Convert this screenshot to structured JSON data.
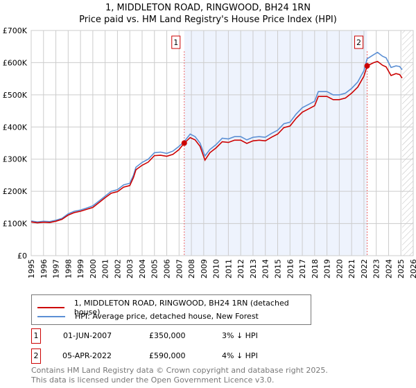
{
  "chart_data": {
    "type": "line",
    "title": "1, MIDDLETON ROAD, RINGWOOD, BH24 1RN",
    "subtitle": "Price paid vs. HM Land Registry's House Price Index (HPI)",
    "xlim": [
      1995,
      2026
    ],
    "ylim": [
      0,
      700000
    ],
    "x_ticks": [
      "1995",
      "1996",
      "1997",
      "1998",
      "1999",
      "2000",
      "2001",
      "2002",
      "2003",
      "2004",
      "2005",
      "2006",
      "2007",
      "2008",
      "2009",
      "2010",
      "2011",
      "2012",
      "2013",
      "2014",
      "2015",
      "2016",
      "2017",
      "2018",
      "2019",
      "2020",
      "2021",
      "2022",
      "2023",
      "2024",
      "2025",
      "2026"
    ],
    "y_ticks": [
      {
        "v": 0,
        "label": "£0"
      },
      {
        "v": 100000,
        "label": "£100K"
      },
      {
        "v": 200000,
        "label": "£200K"
      },
      {
        "v": 300000,
        "label": "£300K"
      },
      {
        "v": 400000,
        "label": "£400K"
      },
      {
        "v": 500000,
        "label": "£500K"
      },
      {
        "v": 600000,
        "label": "£600K"
      },
      {
        "v": 700000,
        "label": "£700K"
      }
    ],
    "grid": true,
    "shaded_range": [
      2007.42,
      2022.26
    ],
    "forecast_hatch_from": 2025.1,
    "series": [
      {
        "name": "1, MIDDLETON ROAD, RINGWOOD, BH24 1RN (detached house)",
        "color": "#cc0000",
        "x": [
          1995,
          1995.5,
          1996,
          1996.5,
          1997,
          1997.5,
          1998,
          1998.5,
          1999,
          1999.5,
          2000,
          2000.5,
          2001,
          2001.5,
          2002,
          2002.5,
          2003,
          2003.3,
          2003.5,
          2004,
          2004.5,
          2005,
          2005.5,
          2006,
          2006.5,
          2007,
          2007.42,
          2007.9,
          2008.3,
          2008.7,
          2009.1,
          2009.5,
          2010,
          2010.5,
          2011,
          2011.5,
          2012,
          2012.5,
          2013,
          2013.5,
          2014,
          2014.5,
          2015,
          2015.5,
          2016,
          2016.5,
          2017,
          2017.5,
          2018,
          2018.3,
          2019,
          2019.5,
          2020,
          2020.5,
          2021,
          2021.5,
          2022,
          2022.26,
          2022.8,
          2023.1,
          2023.5,
          2023.8,
          2024.2,
          2024.6,
          2024.9,
          2025.1
        ],
        "y": [
          105000,
          102000,
          104000,
          103000,
          107000,
          113000,
          126000,
          134000,
          138000,
          144000,
          150000,
          165000,
          180000,
          194000,
          199000,
          213000,
          218000,
          243000,
          267000,
          281000,
          291000,
          311000,
          312000,
          309000,
          315000,
          330000,
          350000,
          367000,
          360000,
          340000,
          297000,
          320000,
          335000,
          354000,
          352000,
          359000,
          359000,
          349000,
          357000,
          359000,
          357000,
          368000,
          378000,
          398000,
          403000,
          427000,
          446000,
          456000,
          466000,
          495000,
          495000,
          485000,
          485000,
          490000,
          505000,
          524000,
          558000,
          590000,
          600000,
          604000,
          592000,
          587000,
          560000,
          566000,
          563000,
          552000
        ]
      },
      {
        "name": "HPI: Average price, detached house, New Forest",
        "color": "#5b8fd4",
        "x": [
          1995,
          1995.5,
          1996,
          1996.5,
          1997,
          1997.5,
          1998,
          1998.5,
          1999,
          1999.5,
          2000,
          2000.5,
          2001,
          2001.5,
          2002,
          2002.5,
          2003,
          2003.3,
          2003.5,
          2004,
          2004.5,
          2005,
          2005.5,
          2006,
          2006.5,
          2007,
          2007.42,
          2007.9,
          2008.3,
          2008.7,
          2009.1,
          2009.5,
          2010,
          2010.5,
          2011,
          2011.5,
          2012,
          2012.5,
          2013,
          2013.5,
          2014,
          2014.5,
          2015,
          2015.5,
          2016,
          2016.5,
          2017,
          2017.5,
          2018,
          2018.3,
          2019,
          2019.5,
          2020,
          2020.5,
          2021,
          2021.5,
          2022,
          2022.26,
          2022.8,
          2023.1,
          2023.5,
          2023.8,
          2024.2,
          2024.6,
          2024.9,
          2025.1
        ],
        "y": [
          108000,
          105000,
          107000,
          106000,
          110000,
          116000,
          130000,
          138000,
          142000,
          148000,
          155000,
          170000,
          185000,
          200000,
          205000,
          220000,
          225000,
          250000,
          275000,
          290000,
          300000,
          320000,
          322000,
          318000,
          325000,
          340000,
          355000,
          378000,
          370000,
          350000,
          310000,
          330000,
          345000,
          365000,
          363000,
          370000,
          370000,
          360000,
          368000,
          370000,
          368000,
          380000,
          390000,
          410000,
          415000,
          440000,
          460000,
          470000,
          480000,
          510000,
          510000,
          500000,
          500000,
          505000,
          520000,
          540000,
          575000,
          612000,
          625000,
          632000,
          620000,
          615000,
          585000,
          590000,
          588000,
          578000
        ]
      }
    ],
    "annotations": [
      {
        "id": "1",
        "x": 2007.42,
        "y": 350000
      },
      {
        "id": "2",
        "x": 2022.26,
        "y": 590000
      }
    ]
  },
  "legend": {
    "series1": "1, MIDDLETON ROAD, RINGWOOD, BH24 1RN (detached house)",
    "series2": "HPI: Average price, detached house, New Forest"
  },
  "transactions": [
    {
      "id": "1",
      "date": "01-JUN-2007",
      "price": "£350,000",
      "hpi": "3% ↓ HPI"
    },
    {
      "id": "2",
      "date": "05-APR-2022",
      "price": "£590,000",
      "hpi": "4% ↓ HPI"
    }
  ],
  "footer": {
    "line1": "Contains HM Land Registry data © Crown copyright and database right 2025.",
    "line2": "This data is licensed under the Open Government Licence v3.0."
  },
  "colors": {
    "red": "#cc0000",
    "blue": "#5b8fd4",
    "shade": "#eef3fd"
  }
}
